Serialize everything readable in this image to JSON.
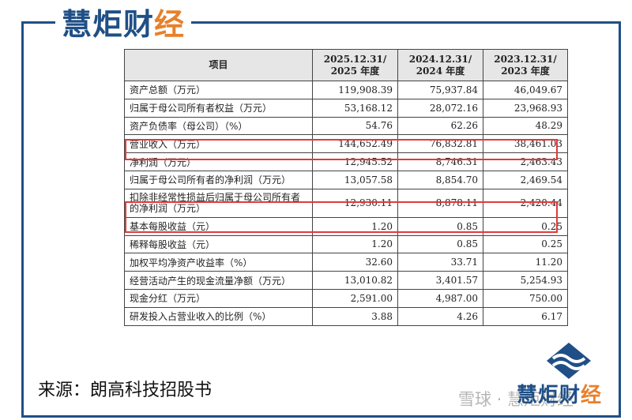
{
  "brand": {
    "logo_main": "慧炬财",
    "logo_accent": "经"
  },
  "table": {
    "headers": [
      {
        "line1": "项目",
        "line2": ""
      },
      {
        "line1": "2025.12.31/",
        "line2": "2025 年度"
      },
      {
        "line1": "2024.12.31/",
        "line2": "2024 年度"
      },
      {
        "line1": "2023.12.31/",
        "line2": "2023 年度"
      }
    ],
    "rows": [
      {
        "label": "资产总额（万元）",
        "v2025": "119,908.39",
        "v2024": "75,937.84",
        "v2023": "46,049.67"
      },
      {
        "label": "归属于母公司所有者权益（万元）",
        "v2025": "53,168.12",
        "v2024": "28,072.16",
        "v2023": "23,968.93"
      },
      {
        "label": "资产负债率（母公司）（%）",
        "v2025": "54.76",
        "v2024": "62.26",
        "v2023": "48.29"
      },
      {
        "label": "营业收入（万元）",
        "v2025": "144,652.49",
        "v2024": "76,832.81",
        "v2023": "38,461.03"
      },
      {
        "label": "净利润（万元）",
        "v2025": "12,945.52",
        "v2024": "8,746.31",
        "v2023": "2,463.43"
      },
      {
        "label": "归属于母公司所有者的净利润（万元）",
        "v2025": "13,057.58",
        "v2024": "8,854.70",
        "v2023": "2,469.54"
      },
      {
        "label": "扣除非经常性损益后归属于母公司所有者的净利润（万元）",
        "v2025": "12,930.11",
        "v2024": "8,878.11",
        "v2023": "2,420.44"
      },
      {
        "label": "基本每股收益（元）",
        "v2025": "1.20",
        "v2024": "0.85",
        "v2023": "0.25"
      },
      {
        "label": "稀释每股收益（元）",
        "v2025": "1.20",
        "v2024": "0.85",
        "v2023": "0.25"
      },
      {
        "label": "加权平均净资产收益率（%）",
        "v2025": "32.60",
        "v2024": "33.71",
        "v2023": "11.20"
      },
      {
        "label": "经营活动产生的现金流量净额（万元）",
        "v2025": "13,010.82",
        "v2024": "3,401.57",
        "v2023": "5,254.93"
      },
      {
        "label": "现金分红（万元）",
        "v2025": "2,591.00",
        "v2024": "4,987.00",
        "v2023": "750.00"
      },
      {
        "label": "研发投入占营业收入的比例（%）",
        "v2025": "3.88",
        "v2024": "4.26",
        "v2023": "6.17"
      }
    ],
    "highlight_color": "#e03a3a"
  },
  "source_text": "来源：朗高科技招股书",
  "watermark": {
    "logo_main": "慧炬财",
    "logo_accent": "经",
    "xueqiu": "雪球 · 慧炬财经"
  },
  "colors": {
    "brand_blue": "#1f4f86",
    "brand_orange": "#e8802a"
  }
}
